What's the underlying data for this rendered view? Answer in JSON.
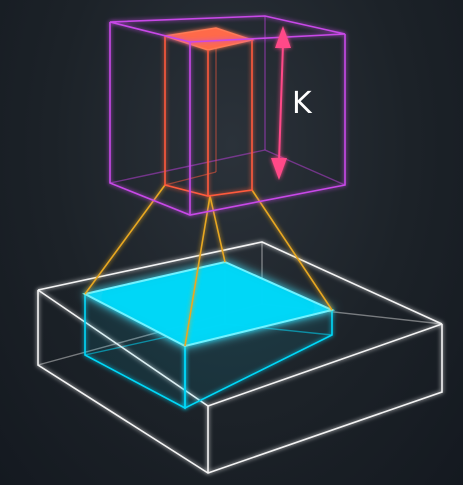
{
  "labels": {
    "dimension": "K"
  },
  "colors": {
    "background": "#1c2228",
    "upper_box": "#c040e0",
    "column": "#ff5a3c",
    "column_top": "#ff6a48",
    "projection": "#e8a820",
    "lower_box": "#f0f0f0",
    "cyan_region": "#00d8f8",
    "arrow": "#ff4a88"
  }
}
